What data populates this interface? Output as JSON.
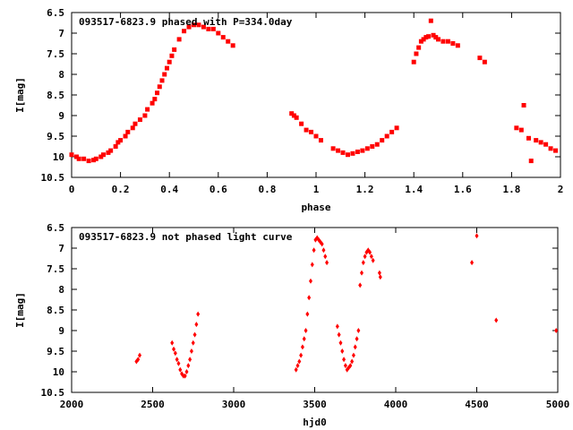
{
  "chart_data": [
    {
      "type": "scatter",
      "title": "093517-6823.9 phased with P=334.0day",
      "xlabel": "phase",
      "ylabel": "I[mag]",
      "xlim": [
        0,
        2
      ],
      "ylim": [
        10.5,
        6.5
      ],
      "y_inverted": true,
      "x_ticks": [
        0,
        0.2,
        0.4,
        0.6,
        0.8,
        1,
        1.2,
        1.4,
        1.6,
        1.8,
        2
      ],
      "x_tick_labels": [
        "0",
        "0.2",
        "0.4",
        "0.6",
        "0.8",
        "1",
        "1.2",
        "1.4",
        "1.6",
        "1.8",
        "2"
      ],
      "y_ticks": [
        6.5,
        7,
        7.5,
        8,
        8.5,
        9,
        9.5,
        10,
        10.5
      ],
      "y_tick_labels": [
        "6.5",
        "7",
        "7.5",
        "8",
        "8.5",
        "9",
        "9.5",
        "10",
        "10.5"
      ],
      "grid": false,
      "marker_color": "#ff0000",
      "series": [
        {
          "x": [
            0.0,
            0.02,
            0.03,
            0.05,
            0.07,
            0.09,
            0.1,
            0.12,
            0.13,
            0.15,
            0.16,
            0.18,
            0.19,
            0.2,
            0.22,
            0.23,
            0.25,
            0.26,
            0.28,
            0.3,
            0.31,
            0.33,
            0.34,
            0.35,
            0.36,
            0.37,
            0.38,
            0.39,
            0.4,
            0.41,
            0.42,
            0.44,
            0.46,
            0.48,
            0.5,
            0.52,
            0.54,
            0.56,
            0.58,
            0.6,
            0.62,
            0.64,
            0.66,
            0.9,
            0.91,
            0.92,
            0.94,
            0.96,
            0.98,
            1.0,
            1.02,
            1.07,
            1.09,
            1.11,
            1.13,
            1.15,
            1.17,
            1.19,
            1.21,
            1.23,
            1.25,
            1.27,
            1.29,
            1.31,
            1.33,
            1.4,
            1.41,
            1.42,
            1.43,
            1.44,
            1.45,
            1.46,
            1.47,
            1.48,
            1.49,
            1.5,
            1.52,
            1.54,
            1.56,
            1.58,
            1.67,
            1.69,
            1.82,
            1.84,
            1.85,
            1.87,
            1.88,
            1.9,
            1.92,
            1.94,
            1.96,
            1.98
          ],
          "y": [
            9.95,
            10.0,
            10.05,
            10.05,
            10.1,
            10.08,
            10.05,
            10.0,
            9.95,
            9.9,
            9.85,
            9.75,
            9.65,
            9.6,
            9.5,
            9.4,
            9.3,
            9.2,
            9.1,
            9.0,
            8.85,
            8.7,
            8.6,
            8.45,
            8.3,
            8.15,
            8.0,
            7.85,
            7.7,
            7.55,
            7.4,
            7.15,
            6.95,
            6.85,
            6.8,
            6.8,
            6.85,
            6.9,
            6.9,
            7.0,
            7.1,
            7.2,
            7.3,
            8.95,
            9.0,
            9.05,
            9.2,
            9.35,
            9.4,
            9.5,
            9.6,
            9.8,
            9.85,
            9.9,
            9.95,
            9.92,
            9.88,
            9.85,
            9.8,
            9.75,
            9.7,
            9.6,
            9.5,
            9.4,
            9.3,
            7.7,
            7.5,
            7.35,
            7.2,
            7.15,
            7.1,
            7.08,
            6.7,
            7.05,
            7.1,
            7.15,
            7.2,
            7.2,
            7.25,
            7.3,
            7.6,
            7.7,
            9.3,
            9.35,
            8.75,
            9.55,
            10.1,
            9.6,
            9.65,
            9.7,
            9.8,
            9.85
          ]
        }
      ]
    },
    {
      "type": "scatter",
      "title": "093517-6823.9 not phased light curve",
      "xlabel": "hjd0",
      "ylabel": "I[mag]",
      "xlim": [
        2000,
        5000
      ],
      "ylim": [
        10.5,
        6.5
      ],
      "y_inverted": true,
      "x_ticks": [
        2000,
        2500,
        3000,
        3500,
        4000,
        4500,
        5000
      ],
      "x_tick_labels": [
        "2000",
        "2500",
        "3000",
        "3500",
        "4000",
        "4500",
        "5000"
      ],
      "y_ticks": [
        6.5,
        7,
        7.5,
        8,
        8.5,
        9,
        9.5,
        10,
        10.5
      ],
      "y_tick_labels": [
        "6.5",
        "7",
        "7.5",
        "8",
        "8.5",
        "9",
        "9.5",
        "10",
        "10.5"
      ],
      "grid": false,
      "marker_color": "#ff0000",
      "series": [
        {
          "x": [
            2400,
            2410,
            2420,
            2620,
            2630,
            2640,
            2650,
            2660,
            2670,
            2680,
            2690,
            2700,
            2710,
            2720,
            2730,
            2740,
            2750,
            2760,
            2770,
            2780,
            3385,
            3395,
            3405,
            3415,
            3425,
            3435,
            3445,
            3455,
            3465,
            3475,
            3485,
            3495,
            3505,
            3515,
            3525,
            3535,
            3545,
            3555,
            3565,
            3575,
            3640,
            3650,
            3660,
            3670,
            3680,
            3690,
            3700,
            3710,
            3720,
            3730,
            3740,
            3750,
            3760,
            3770,
            3780,
            3790,
            3800,
            3810,
            3820,
            3830,
            3840,
            3850,
            3860,
            3900,
            3905,
            4470,
            4500,
            4620,
            4990
          ],
          "y": [
            9.75,
            9.7,
            9.6,
            9.3,
            9.45,
            9.55,
            9.7,
            9.8,
            9.95,
            10.05,
            10.1,
            10.1,
            10.0,
            9.85,
            9.7,
            9.5,
            9.3,
            9.1,
            8.85,
            8.6,
            9.95,
            9.85,
            9.75,
            9.6,
            9.4,
            9.2,
            9.0,
            8.6,
            8.2,
            7.8,
            7.4,
            7.05,
            6.8,
            6.75,
            6.8,
            6.85,
            6.9,
            7.05,
            7.2,
            7.35,
            8.9,
            9.1,
            9.3,
            9.5,
            9.7,
            9.85,
            9.95,
            9.9,
            9.85,
            9.75,
            9.6,
            9.4,
            9.2,
            9.0,
            7.9,
            7.6,
            7.35,
            7.2,
            7.1,
            7.05,
            7.1,
            7.2,
            7.3,
            7.6,
            7.7,
            7.35,
            6.7,
            8.75,
            9.0
          ]
        }
      ]
    }
  ]
}
